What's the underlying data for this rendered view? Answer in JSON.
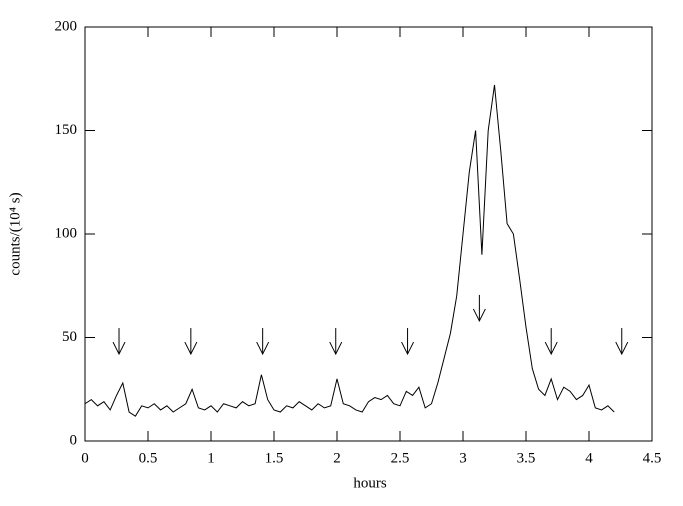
{
  "chart_data": {
    "type": "line",
    "xlabel": "hours",
    "ylabel": "counts/(10⁴ s)",
    "x": [
      0,
      0.05,
      0.1,
      0.15,
      0.2,
      0.25,
      0.3,
      0.35,
      0.4,
      0.45,
      0.5,
      0.55,
      0.6,
      0.65,
      0.7,
      0.75,
      0.8,
      0.85,
      0.9,
      0.95,
      1.0,
      1.05,
      1.1,
      1.15,
      1.2,
      1.25,
      1.3,
      1.35,
      1.4,
      1.45,
      1.5,
      1.55,
      1.6,
      1.65,
      1.7,
      1.75,
      1.8,
      1.85,
      1.9,
      1.95,
      2.0,
      2.05,
      2.1,
      2.15,
      2.2,
      2.25,
      2.3,
      2.35,
      2.4,
      2.45,
      2.5,
      2.55,
      2.6,
      2.65,
      2.7,
      2.75,
      2.8,
      2.85,
      2.9,
      2.95,
      3.0,
      3.05,
      3.1,
      3.15,
      3.2,
      3.25,
      3.3,
      3.35,
      3.4,
      3.45,
      3.5,
      3.55,
      3.6,
      3.65,
      3.7,
      3.75,
      3.8,
      3.85,
      3.9,
      3.95,
      4.0,
      4.05,
      4.1,
      4.15,
      4.2
    ],
    "values": [
      18,
      20,
      17,
      19,
      15,
      22,
      28,
      14,
      12,
      17,
      16,
      18,
      15,
      17,
      14,
      16,
      18,
      25,
      16,
      15,
      17,
      14,
      18,
      17,
      16,
      19,
      17,
      18,
      32,
      20,
      15,
      14,
      17,
      16,
      19,
      17,
      15,
      18,
      16,
      17,
      30,
      18,
      17,
      15,
      14,
      19,
      21,
      20,
      22,
      18,
      17,
      24,
      22,
      26,
      16,
      18,
      28,
      40,
      52,
      70,
      100,
      130,
      150,
      90,
      150,
      172,
      140,
      105,
      100,
      78,
      55,
      35,
      25,
      22,
      30,
      20,
      26,
      24,
      20,
      22,
      27,
      16,
      15,
      17,
      14
    ],
    "color": "#000000",
    "arrows": [
      {
        "x": 0.27,
        "y": 42
      },
      {
        "x": 0.84,
        "y": 42
      },
      {
        "x": 1.41,
        "y": 42
      },
      {
        "x": 1.99,
        "y": 42
      },
      {
        "x": 2.56,
        "y": 42
      },
      {
        "x": 3.13,
        "y": 58
      },
      {
        "x": 3.7,
        "y": 42
      },
      {
        "x": 4.26,
        "y": 42
      }
    ],
    "xlim": [
      0,
      4.5
    ],
    "xticks": [
      0,
      0.5,
      1,
      1.5,
      2,
      2.5,
      3,
      3.5,
      4,
      4.5
    ],
    "ylim": [
      0,
      200
    ],
    "yticks": [
      0,
      50,
      100,
      150,
      200
    ]
  }
}
